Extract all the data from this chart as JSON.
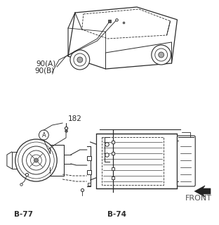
{
  "bg_color": "#ffffff",
  "line_color": "#2a2a2a",
  "text_color": "#2a2a2a",
  "label_90A": "90(A)",
  "label_90B": "90(B)",
  "label_182": "182",
  "label_A": "A",
  "label_B77": "B-77",
  "label_B74": "B-74",
  "label_FRONT": "FRONT",
  "figsize": [
    3.12,
    3.2
  ],
  "dpi": 100
}
